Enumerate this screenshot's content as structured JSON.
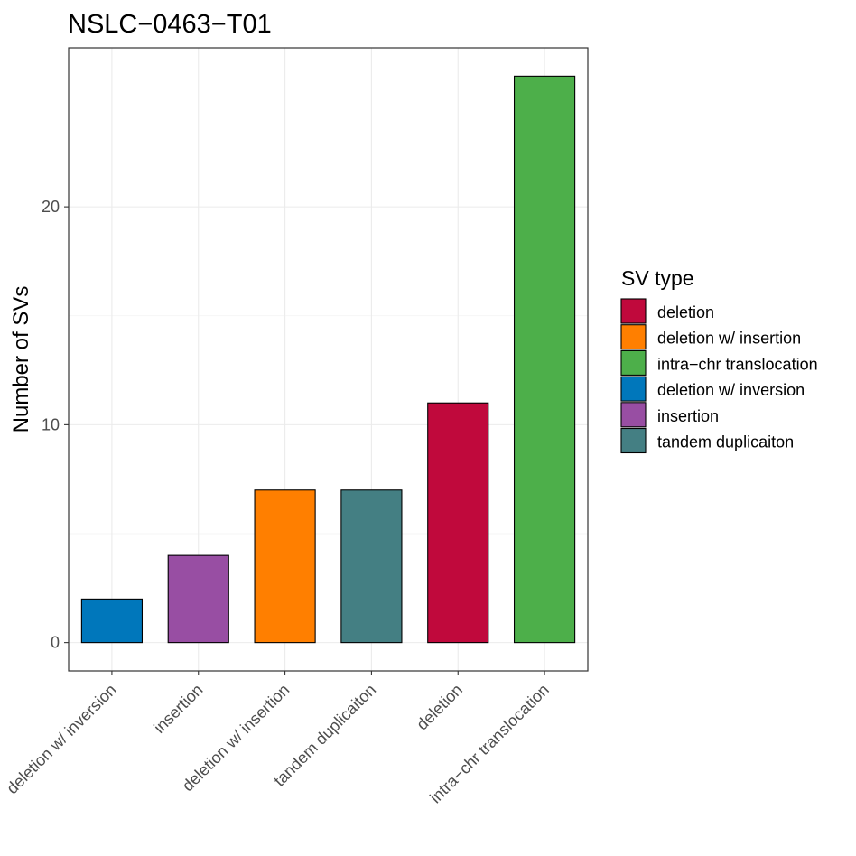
{
  "chart_data": {
    "type": "bar",
    "title": "NSLC−0463−T01",
    "xlabel": "",
    "ylabel": "Number of SVs",
    "categories": [
      "deletion w/ inversion",
      "insertion",
      "deletion w/ insertion",
      "tandem duplicaiton",
      "deletion",
      "intra−chr translocation"
    ],
    "values": [
      2,
      4,
      7,
      7,
      11,
      26
    ],
    "bar_colors": [
      "#0077BB",
      "#984EA3",
      "#FF7F00",
      "#447F83",
      "#C0093C",
      "#4DAF4A"
    ],
    "ylim": [
      -1.3,
      27.3
    ],
    "yticks": [
      0,
      10,
      20
    ],
    "grid": true,
    "legend": {
      "title": "SV type",
      "position": "right",
      "entries": [
        {
          "label": "deletion",
          "color": "#C0093C"
        },
        {
          "label": "deletion w/ insertion",
          "color": "#FF7F00"
        },
        {
          "label": "intra−chr translocation",
          "color": "#4DAF4A"
        },
        {
          "label": "deletion w/ inversion",
          "color": "#0077BB"
        },
        {
          "label": "insertion",
          "color": "#984EA3"
        },
        {
          "label": "tandem duplicaiton",
          "color": "#447F83"
        }
      ]
    }
  }
}
